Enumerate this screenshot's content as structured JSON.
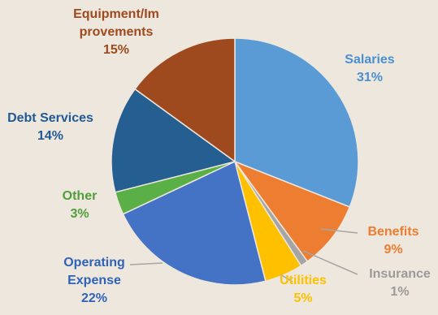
{
  "chart_data": {
    "type": "pie",
    "slices": [
      {
        "name": "Salaries",
        "value": 31,
        "label_lines": [
          "Salaries",
          "31%"
        ],
        "color": "#5b9bd5",
        "label_color": "#4a90d0"
      },
      {
        "name": "Benefits",
        "value": 9,
        "label_lines": [
          "Benefits",
          "9%"
        ],
        "color": "#ed7d31",
        "label_color": "#ed7d31"
      },
      {
        "name": "Insurance",
        "value": 1,
        "label_lines": [
          "Insurance",
          "1%"
        ],
        "color": "#a5a5a5",
        "label_color": "#9a9a9a"
      },
      {
        "name": "Utilities",
        "value": 5,
        "label_lines": [
          "Utilities",
          "5%"
        ],
        "color": "#ffc000",
        "label_color": "#ffc000"
      },
      {
        "name": "Operating Expense",
        "value": 22,
        "label_lines": [
          "Operating",
          "Expense",
          "22%"
        ],
        "color": "#4472c4",
        "label_color": "#2f62b8"
      },
      {
        "name": "Other",
        "value": 3,
        "label_lines": [
          "Other",
          "3%"
        ],
        "color": "#5ab046",
        "label_color": "#4f9e3a"
      },
      {
        "name": "Debt Services",
        "value": 14,
        "label_lines": [
          "Debt Services",
          "14%"
        ],
        "color": "#255e91",
        "label_color": "#1f5a94"
      },
      {
        "name": "Equipment/Improvements",
        "value": 15,
        "label_lines": [
          "Equipment/Im",
          "provements",
          "15%"
        ],
        "color": "#9e4a1e",
        "label_color": "#9e4a1e"
      }
    ],
    "legend": "none",
    "grid": false
  }
}
